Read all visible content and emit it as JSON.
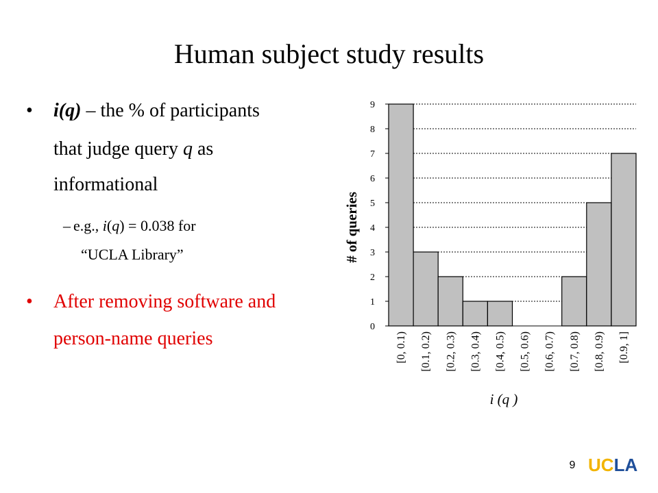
{
  "title": "Human subject study results",
  "bullets": [
    {
      "lines": [
        [
          "i(q)",
          " – the % of participants"
        ],
        [
          "that judge query ",
          "q",
          " as"
        ],
        [
          "informational"
        ]
      ]
    },
    {
      "lines": [
        [
          "–",
          "e.g., ",
          "i",
          "(",
          "q",
          ") = 0.038 for"
        ],
        [
          "“UCLA Library”"
        ]
      ]
    },
    {
      "lines": [
        [
          "After removing software and"
        ],
        [
          "person-name queries"
        ]
      ]
    }
  ],
  "page_number": "9",
  "logo": [
    "UC",
    "LA"
  ],
  "chart_data": {
    "type": "bar",
    "categories": [
      "[0, 0.1)",
      "[0.1, 0.2)",
      "[0.2, 0.3)",
      "[0.3, 0.4)",
      "[0.4, 0.5)",
      "[0.5, 0.6)",
      "[0.6, 0.7)",
      "[0.7, 0.8)",
      "[0.8, 0.9)",
      "[0.9, 1]"
    ],
    "values": [
      9,
      3,
      2,
      1,
      1,
      0,
      0,
      2,
      5,
      7
    ],
    "color": "#c0c0c0",
    "ylim": [
      0,
      9
    ],
    "yticks": [
      0,
      1,
      2,
      3,
      4,
      5,
      6,
      7,
      8,
      9
    ],
    "grid": true,
    "y_label": "# of queries",
    "x_label": "i (q )"
  }
}
